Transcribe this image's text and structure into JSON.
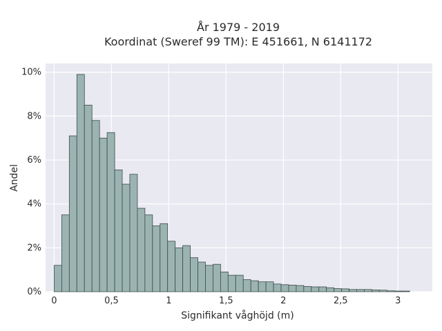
{
  "chart_data": {
    "type": "bar",
    "title_line1": "År 1979 - 2019",
    "title_line2": "Koordinat (Sweref 99 TM): E 451661, N 6141172",
    "xlabel": "Signifikant våghöjd (m)",
    "ylabel": "Andel",
    "xlim": [
      -0.075,
      3.3
    ],
    "ylim": [
      0,
      10.4
    ],
    "bin_width": 0.066,
    "bin_start": 0.0,
    "x_ticks": [
      0,
      0.5,
      1,
      1.5,
      2,
      2.5,
      3
    ],
    "x_tick_labels": [
      "0",
      "0,5",
      "1",
      "1,5",
      "2",
      "2,5",
      "3"
    ],
    "y_ticks": [
      0,
      2,
      4,
      6,
      8,
      10
    ],
    "y_tick_labels": [
      "0%",
      "2%",
      "4%",
      "6%",
      "8%",
      "10%"
    ],
    "grid": true,
    "values": [
      1.2,
      3.5,
      7.1,
      9.9,
      8.5,
      7.8,
      7.0,
      7.25,
      5.55,
      4.9,
      5.35,
      3.8,
      3.5,
      3.0,
      3.1,
      2.3,
      2.0,
      2.1,
      1.55,
      1.35,
      1.2,
      1.25,
      0.9,
      0.75,
      0.75,
      0.55,
      0.5,
      0.45,
      0.45,
      0.35,
      0.32,
      0.3,
      0.28,
      0.24,
      0.22,
      0.22,
      0.18,
      0.14,
      0.13,
      0.1,
      0.1,
      0.1,
      0.08,
      0.07,
      0.04,
      0.03,
      0.03
    ],
    "colors": {
      "plot_bg": "#e9e9f1",
      "bar_fill": "#9bb4b1",
      "bar_edge": "#3c4a48",
      "text": "#2a2a2a"
    }
  }
}
